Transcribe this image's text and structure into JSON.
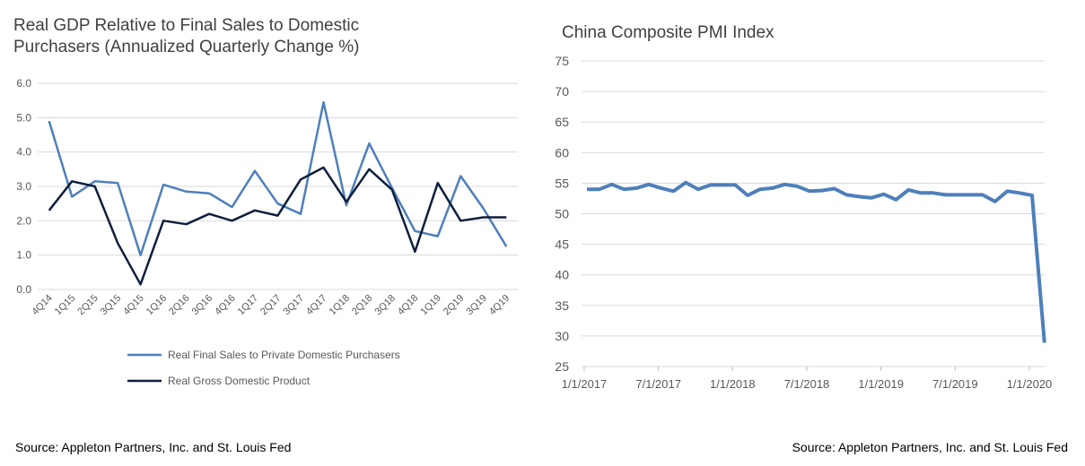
{
  "left_chart": {
    "source": "Source: Appleton Partners, Inc. and St. Louis Fed",
    "chart_data": {
      "type": "line",
      "title_line1": "Real GDP Relative to Final Sales to Domestic",
      "title_line2": "Purchasers (Annualized Quarterly Change %)",
      "categories": [
        "4Q14",
        "1Q15",
        "2Q15",
        "3Q15",
        "4Q15",
        "1Q16",
        "2Q16",
        "3Q16",
        "4Q16",
        "1Q17",
        "2Q17",
        "3Q17",
        "4Q17",
        "1Q18",
        "2Q18",
        "3Q18",
        "4Q18",
        "1Q19",
        "2Q19",
        "3Q19",
        "4Q19"
      ],
      "y_ticks": [
        "6.0",
        "5.0",
        "4.0",
        "3.0",
        "2.0",
        "1.0",
        "0.0"
      ],
      "ylim": [
        0,
        6
      ],
      "grid": true,
      "legend_position": "bottom",
      "series": [
        {
          "name": "Real Final Sales to Private Domestic Purchasers",
          "color": "#4e7fbb",
          "values": [
            4.9,
            2.7,
            3.15,
            3.1,
            1.0,
            3.05,
            2.85,
            2.8,
            2.4,
            3.45,
            2.5,
            2.2,
            5.45,
            2.45,
            4.25,
            2.95,
            1.7,
            1.55,
            3.3,
            2.35,
            1.25
          ]
        },
        {
          "name": "Real Gross Domestic Product",
          "color": "#0e1f3d",
          "values": [
            2.3,
            3.15,
            3.0,
            1.35,
            0.15,
            2.0,
            1.9,
            2.2,
            2.0,
            2.3,
            2.15,
            3.2,
            3.55,
            2.55,
            3.5,
            2.9,
            1.1,
            3.1,
            2.0,
            2.1,
            2.1
          ]
        }
      ]
    }
  },
  "right_chart": {
    "source": "Source: Appleton Partners, Inc. and St. Louis Fed",
    "chart_data": {
      "type": "line",
      "title": "China Composite PMI Index",
      "x_ticks": [
        "1/1/2017",
        "7/1/2017",
        "1/1/2018",
        "7/1/2018",
        "1/1/2019",
        "7/1/2019",
        "1/1/2020"
      ],
      "y_ticks": [
        "75",
        "70",
        "65",
        "60",
        "55",
        "50",
        "45",
        "40",
        "35",
        "30",
        "25"
      ],
      "ylim": [
        25,
        75
      ],
      "grid": true,
      "series": [
        {
          "color": "#4e7fbb",
          "values": [
            54.0,
            54.0,
            54.8,
            54.0,
            54.2,
            54.8,
            54.2,
            53.7,
            55.1,
            54.0,
            54.7,
            54.7,
            54.7,
            53.0,
            54.0,
            54.2,
            54.8,
            54.5,
            53.7,
            53.8,
            54.1,
            53.1,
            52.8,
            52.6,
            53.2,
            52.3,
            53.9,
            53.4,
            53.4,
            53.1,
            53.1,
            53.1,
            53.1,
            52.0,
            53.7,
            53.4,
            53.0,
            28.9
          ]
        }
      ]
    }
  }
}
